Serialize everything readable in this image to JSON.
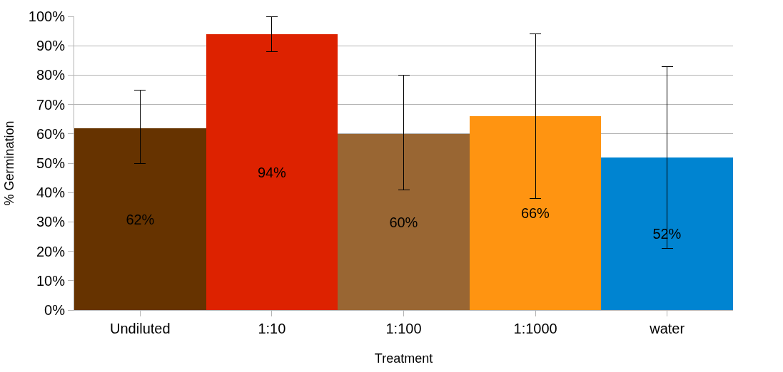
{
  "chart_data": {
    "type": "bar",
    "xlabel": "Treatment",
    "ylabel": "% Germination",
    "categories": [
      "Undiluted",
      "1:10",
      "1:100",
      "1:1000",
      "water"
    ],
    "values": [
      62,
      94,
      60,
      66,
      52
    ],
    "colors": [
      "#663300",
      "#dd2200",
      "#996633",
      "#ff9411",
      "#0084d1"
    ],
    "errors": [
      [
        50,
        75
      ],
      [
        88,
        100
      ],
      [
        41,
        80
      ],
      [
        38,
        94
      ],
      [
        21,
        83
      ]
    ],
    "value_labels": [
      "62%",
      "94%",
      "60%",
      "66%",
      "52%"
    ],
    "ylim": [
      0,
      100
    ],
    "yticks": [
      {
        "value": 0,
        "label": "0%"
      },
      {
        "value": 10,
        "label": "10%"
      },
      {
        "value": 20,
        "label": "20%"
      },
      {
        "value": 30,
        "label": "30%"
      },
      {
        "value": 40,
        "label": "40%"
      },
      {
        "value": 50,
        "label": "50%"
      },
      {
        "value": 60,
        "label": "60%"
      },
      {
        "value": 70,
        "label": "70%"
      },
      {
        "value": 80,
        "label": "80%"
      },
      {
        "value": 90,
        "label": "90%"
      },
      {
        "value": 100,
        "label": "100%"
      }
    ],
    "grid": "y"
  }
}
